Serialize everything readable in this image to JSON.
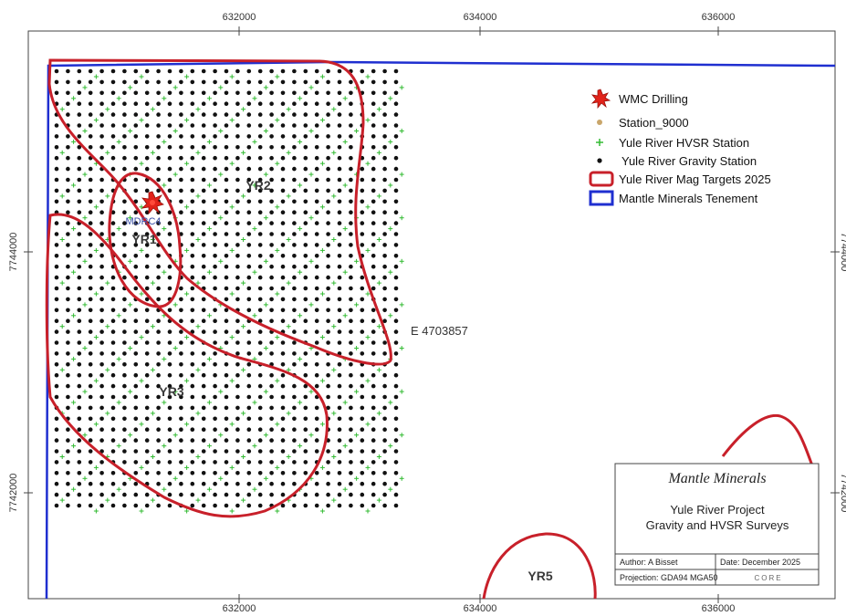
{
  "map": {
    "x_ticks": [
      "632000",
      "634000",
      "636000"
    ],
    "y_ticks": [
      "7744000",
      "7742000"
    ],
    "right_y_ticks": [
      "7744000",
      "7742000"
    ],
    "coordinate_note": "E 4703857"
  },
  "targets": {
    "yr1": "YR1",
    "yr2": "YR2",
    "yr3": "YR3",
    "yr5": "YR5"
  },
  "drillhole": {
    "id": "MDRC4",
    "icon": "red-starburst-icon"
  },
  "legend": {
    "items": [
      {
        "label": "WMC Drilling",
        "symbol": "red-starburst-icon"
      },
      {
        "label": "Station_9000",
        "symbol": "tan-dot-icon"
      },
      {
        "label": "Yule River HVSR Station",
        "symbol": "green-cross-icon"
      },
      {
        "label": "Yule River Gravity Station",
        "symbol": "black-dot-icon"
      },
      {
        "label": "Yule River Mag Targets 2025",
        "symbol": "red-outline-box-icon"
      },
      {
        "label": "Mantle Minerals Tenement",
        "symbol": "blue-outline-box-icon"
      }
    ]
  },
  "title_block": {
    "company": "Mantle Minerals",
    "project": "Yule River Project",
    "subtitle": "Gravity and HVSR Surveys",
    "author": "Author: A Bisset",
    "date": "Date: December 2025",
    "projection": "Projection: GDA94 MGA50",
    "logo": "CORE"
  },
  "colors": {
    "tenement": "#1f2fd0",
    "targets": "#c8202a",
    "gravity_station": "#111111",
    "hvsr_station": "#33bb33",
    "station_9000": "#c9a66b"
  }
}
